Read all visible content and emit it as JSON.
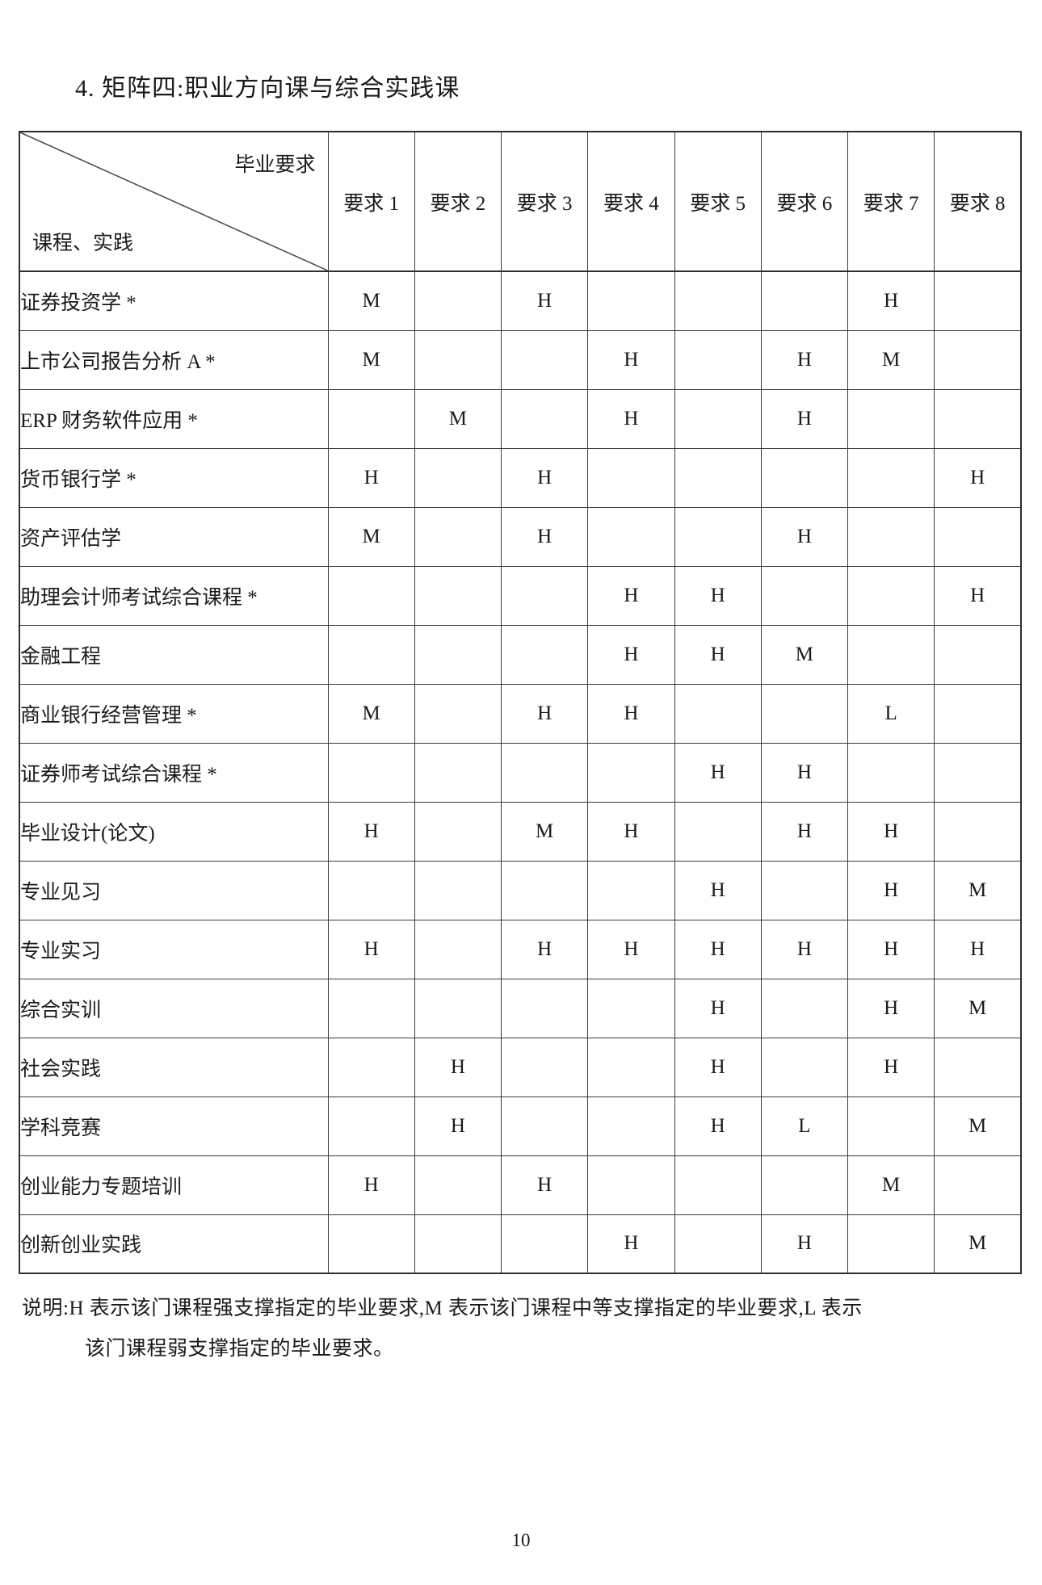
{
  "page": {
    "title": "4. 矩阵四:职业方向课与综合实践课",
    "page_number": "10"
  },
  "matrix": {
    "corner": {
      "top_label": "毕业要求",
      "bottom_label": "课程、实践"
    },
    "column_headers": [
      "要求 1",
      "要求 2",
      "要求 3",
      "要求 4",
      "要求 5",
      "要求 6",
      "要求 7",
      "要求 8"
    ],
    "rows": [
      {
        "course": "证券投资学 *",
        "cells": [
          "M",
          "",
          "H",
          "",
          "",
          "",
          "H",
          ""
        ]
      },
      {
        "course": "上市公司报告分析 A *",
        "cells": [
          "M",
          "",
          "",
          "H",
          "",
          "H",
          "M",
          ""
        ]
      },
      {
        "course": "ERP 财务软件应用 *",
        "cells": [
          "",
          "M",
          "",
          "H",
          "",
          "H",
          "",
          ""
        ]
      },
      {
        "course": "货币银行学 *",
        "cells": [
          "H",
          "",
          "H",
          "",
          "",
          "",
          "",
          "H"
        ]
      },
      {
        "course": "资产评估学",
        "cells": [
          "M",
          "",
          "H",
          "",
          "",
          "H",
          "",
          ""
        ]
      },
      {
        "course": "助理会计师考试综合课程 *",
        "cells": [
          "",
          "",
          "",
          "H",
          "H",
          "",
          "",
          "H"
        ]
      },
      {
        "course": "金融工程",
        "cells": [
          "",
          "",
          "",
          "H",
          "H",
          "M",
          "",
          ""
        ]
      },
      {
        "course": "商业银行经营管理 *",
        "cells": [
          "M",
          "",
          "H",
          "H",
          "",
          "",
          "L",
          ""
        ]
      },
      {
        "course": "证券师考试综合课程 *",
        "cells": [
          "",
          "",
          "",
          "",
          "H",
          "H",
          "",
          ""
        ]
      },
      {
        "course": "毕业设计(论文)",
        "cells": [
          "H",
          "",
          "M",
          "H",
          "",
          "H",
          "H",
          ""
        ]
      },
      {
        "course": "专业见习",
        "cells": [
          "",
          "",
          "",
          "",
          "H",
          "",
          "H",
          "M"
        ]
      },
      {
        "course": "专业实习",
        "cells": [
          "H",
          "",
          "H",
          "H",
          "H",
          "H",
          "H",
          "H"
        ]
      },
      {
        "course": "综合实训",
        "cells": [
          "",
          "",
          "",
          "",
          "H",
          "",
          "H",
          "M"
        ]
      },
      {
        "course": "社会实践",
        "cells": [
          "",
          "H",
          "",
          "",
          "H",
          "",
          "H",
          ""
        ]
      },
      {
        "course": "学科竞赛",
        "cells": [
          "",
          "H",
          "",
          "",
          "H",
          "L",
          "",
          "M"
        ]
      },
      {
        "course": "创业能力专题培训",
        "cells": [
          "H",
          "",
          "H",
          "",
          "",
          "",
          "M",
          ""
        ]
      },
      {
        "course": "创新创业实践",
        "cells": [
          "",
          "",
          "",
          "H",
          "",
          "H",
          "",
          "M"
        ]
      }
    ],
    "legend": {
      "line1": "说明:H 表示该门课程强支撑指定的毕业要求,M 表示该门课程中等支撑指定的毕业要求,L 表示",
      "line2": "该门课程弱支撑指定的毕业要求。"
    }
  }
}
